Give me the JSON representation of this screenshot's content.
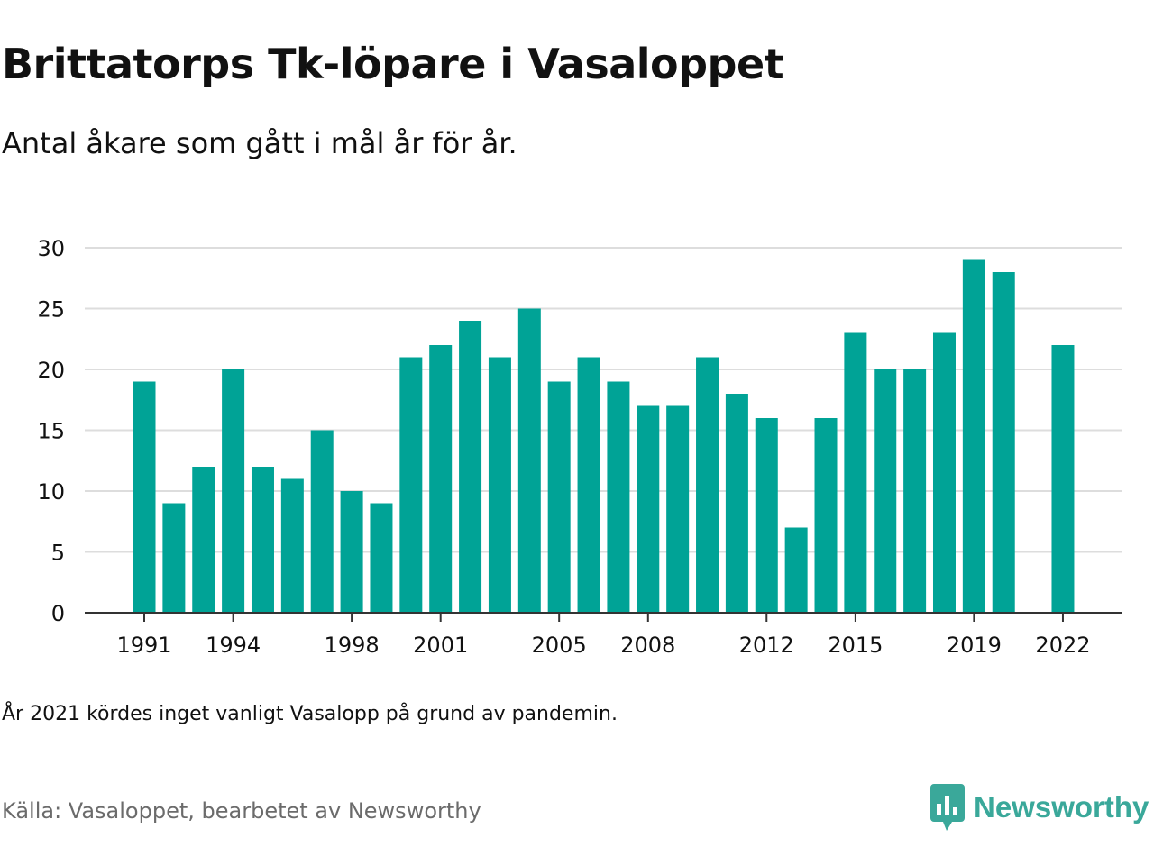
{
  "title": "Brittatorps Tk-löpare i Vasaloppet",
  "subtitle": "Antal åkare som gått i mål år för år.",
  "note": "År 2021 kördes inget vanligt Vasalopp på grund av pandemin.",
  "source": "Källa: Vasaloppet, bearbetet av Newsworthy",
  "logo": {
    "text": "Newsworthy",
    "icon": "bar-chart-speech-bubble-icon"
  },
  "colors": {
    "bar": "#00a396",
    "grid": "#dddddd",
    "axis": "#333333",
    "text": "#111111",
    "source": "#6b6b6b",
    "brand": "#3aa89a"
  },
  "chart_data": {
    "type": "bar",
    "categories": [
      1991,
      1992,
      1993,
      1994,
      1995,
      1996,
      1997,
      1998,
      1999,
      2000,
      2001,
      2002,
      2003,
      2004,
      2005,
      2006,
      2007,
      2008,
      2009,
      2010,
      2011,
      2012,
      2013,
      2014,
      2015,
      2016,
      2017,
      2018,
      2019,
      2020,
      2021,
      2022
    ],
    "values": [
      19,
      9,
      12,
      20,
      12,
      11,
      15,
      10,
      9,
      21,
      22,
      24,
      21,
      25,
      19,
      21,
      19,
      17,
      17,
      21,
      18,
      16,
      7,
      16,
      23,
      20,
      20,
      23,
      29,
      28,
      null,
      22
    ],
    "x_tick_labels": [
      "1991",
      "1994",
      "1998",
      "2001",
      "2005",
      "2008",
      "2012",
      "2015",
      "2019",
      "2022"
    ],
    "y_ticks": [
      0,
      5,
      10,
      15,
      20,
      25,
      30
    ],
    "ylim": [
      0,
      30
    ],
    "xlabel": "",
    "ylabel": "",
    "grid": true,
    "legend": "none"
  }
}
